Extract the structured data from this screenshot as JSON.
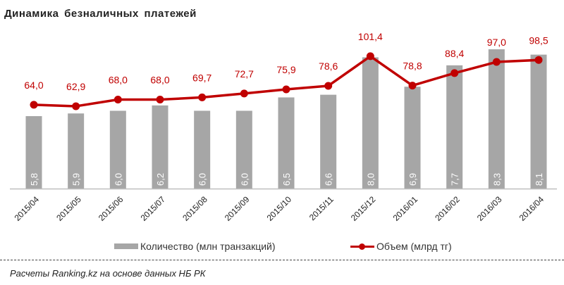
{
  "chart_data": {
    "type": "bar+line",
    "title": "Динамика  безналичных  платежей",
    "categories": [
      "2015/04",
      "2015/05",
      "2015/06",
      "2015/07",
      "2015/08",
      "2015/09",
      "2015/10",
      "2015/11",
      "2015/12",
      "2016/01",
      "2016/02",
      "2016/03",
      "2016/04"
    ],
    "series": [
      {
        "name": "Количество (млн транзакций)",
        "type": "bar",
        "color": "#a6a6a6",
        "label_color": "#ffffff",
        "values": [
          5.8,
          5.9,
          6.0,
          6.2,
          6.0,
          6.0,
          6.5,
          6.6,
          8.0,
          6.9,
          7.7,
          8.3,
          8.1
        ],
        "labels": [
          "5,8",
          "5,9",
          "6,0",
          "6,2",
          "6,0",
          "6,0",
          "6,5",
          "6,6",
          "8,0",
          "6,9",
          "7,7",
          "8,3",
          "8,1"
        ]
      },
      {
        "name": "Объем (млрд тг)",
        "type": "line",
        "color": "#c00000",
        "values": [
          64.0,
          62.9,
          68.0,
          68.0,
          69.7,
          72.7,
          75.9,
          78.6,
          101.4,
          78.8,
          88.4,
          97.0,
          98.5
        ],
        "labels": [
          "64,0",
          "62,9",
          "68,0",
          "68,0",
          "69,7",
          "72,7",
          "75,9",
          "78,6",
          "101,4",
          "78,8",
          "88,4",
          "97,0",
          "98,5"
        ]
      }
    ],
    "legend_position": "bottom",
    "grid": false
  },
  "source": "Расчеты Ranking.kz на основе данных  НБ  РК"
}
